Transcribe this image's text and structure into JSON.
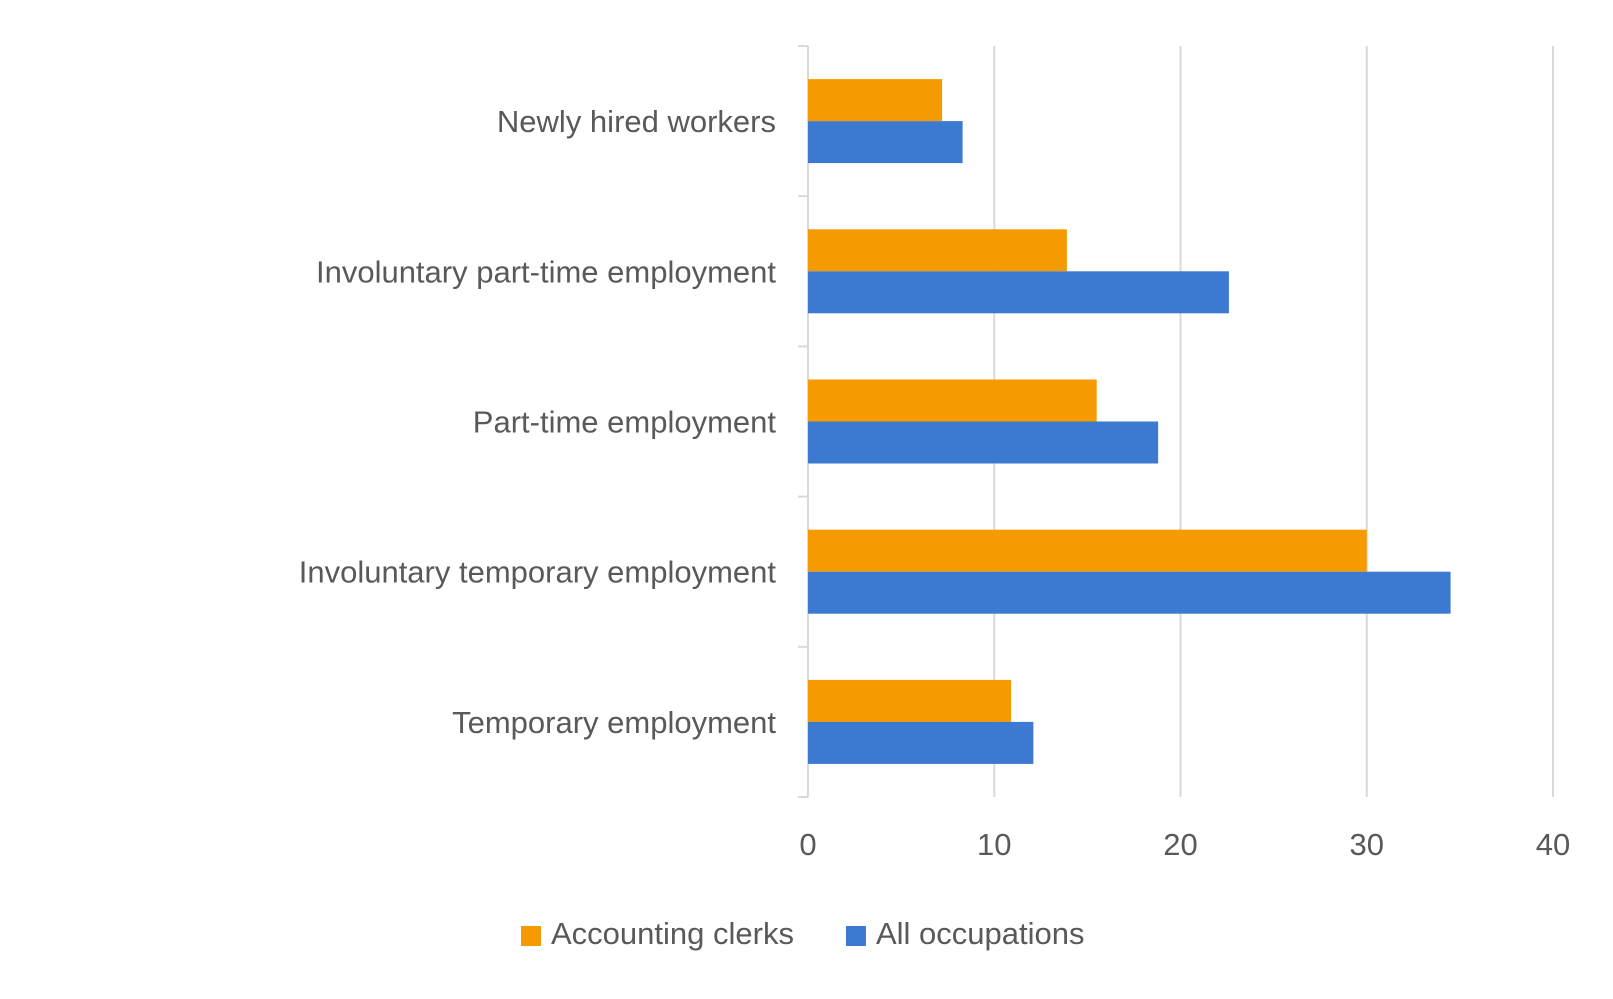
{
  "chart_data": {
    "type": "bar",
    "orientation": "horizontal",
    "categories": [
      "Newly hired workers",
      "Involuntary part-time employment",
      "Part-time employment",
      "Involuntary temporary employment",
      "Temporary employment"
    ],
    "series": [
      {
        "name": "Accounting clerks",
        "color": "#F59A00",
        "values": [
          7.2,
          13.9,
          15.5,
          30.0,
          10.9
        ]
      },
      {
        "name": "All occupations",
        "color": "#3C7AD2",
        "values": [
          8.3,
          22.6,
          18.8,
          34.5,
          12.1
        ]
      }
    ],
    "xlim": [
      0,
      40
    ],
    "xticks": [
      0,
      10,
      20,
      30,
      40
    ],
    "grid": "vertical",
    "legend_position": "bottom",
    "title": "",
    "xlabel": "",
    "ylabel": ""
  }
}
